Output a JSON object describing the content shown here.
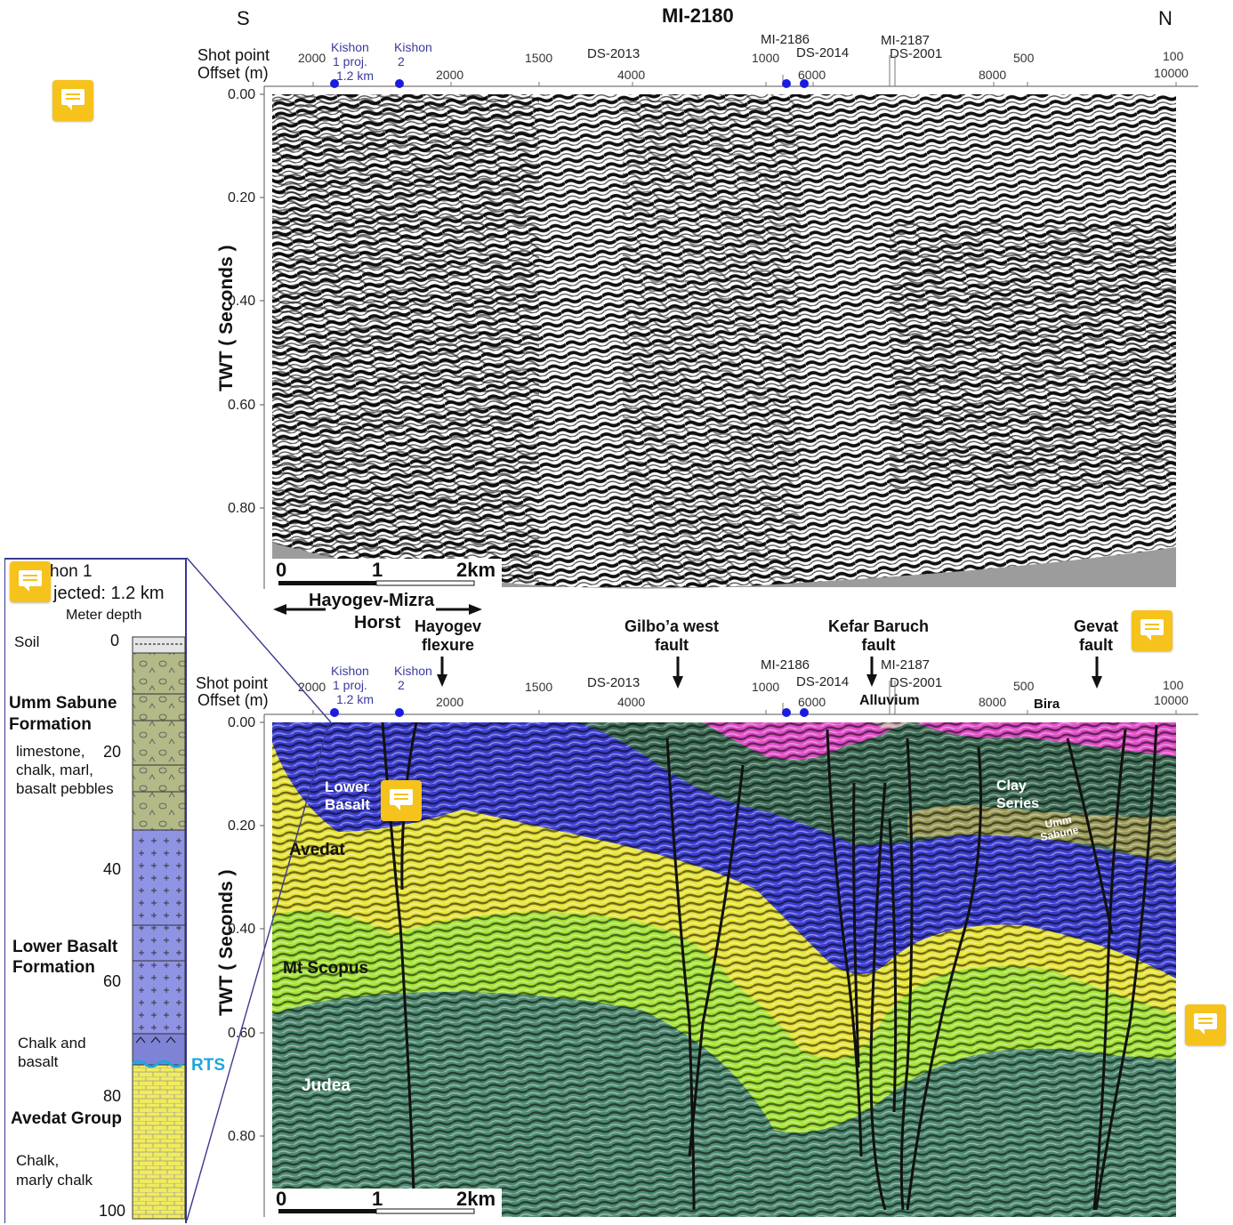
{
  "top_section": {
    "title": "MI-2180",
    "south": "S",
    "north": "N",
    "shot_point_label": "Shot point",
    "offset_label": "Offset (m)",
    "shot_points": [
      {
        "text": "2000"
      },
      {
        "text": "1500"
      },
      {
        "text": "1000"
      },
      {
        "text": "500"
      },
      {
        "text": "100"
      }
    ],
    "offsets": [
      {
        "text": "2000"
      },
      {
        "text": "4000"
      },
      {
        "text": "6000"
      },
      {
        "text": "8000"
      },
      {
        "text": "10000"
      }
    ],
    "wells": [
      {
        "line1": "Kishon",
        "line2": "1 proj.",
        "line3": "1.2 km"
      },
      {
        "line1": "Kishon",
        "line2": "2",
        "line3": ""
      }
    ],
    "crossing_lines": [
      "DS-2013",
      "MI-2186",
      "DS-2014",
      "MI-2187",
      "DS-2001"
    ],
    "y_axis_title": "TWT  ( Seconds )",
    "y_ticks": [
      "0.00",
      "0.20",
      "0.40",
      "0.60",
      "0.80"
    ],
    "scale": {
      "zero": "0",
      "one": "1",
      "two": "2km"
    }
  },
  "horst": {
    "line1": "Hayogev-Mizra",
    "line2": "Horst"
  },
  "faults": [
    {
      "line1": "Hayogev",
      "line2": "flexure"
    },
    {
      "line1": "Gilbo’a west",
      "line2": "fault"
    },
    {
      "line1": "Kefar Baruch",
      "line2": "fault"
    },
    {
      "line1": "Gevat",
      "line2": "fault"
    }
  ],
  "bottom_section": {
    "shot_point_label": "Shot point",
    "offset_label": "Offset (m)",
    "shot_points": [
      {
        "text": "2000"
      },
      {
        "text": "1500"
      },
      {
        "text": "1000"
      },
      {
        "text": "500"
      },
      {
        "text": "100"
      }
    ],
    "offsets": [
      {
        "text": "2000"
      },
      {
        "text": "4000"
      },
      {
        "text": "6000"
      },
      {
        "text": "8000"
      },
      {
        "text": "10000"
      }
    ],
    "wells": [
      {
        "line1": "Kishon",
        "line2": "1 proj.",
        "line3": "1.2 km"
      },
      {
        "line1": "Kishon",
        "line2": "2",
        "line3": ""
      }
    ],
    "crossing_lines": [
      "DS-2013",
      "MI-2186",
      "DS-2014",
      "MI-2187",
      "DS-2001"
    ],
    "y_axis_title": "TWT  ( Seconds )",
    "y_ticks": [
      "0.00",
      "0.20",
      "0.40",
      "0.60",
      "0.80"
    ],
    "scale": {
      "zero": "0",
      "one": "1",
      "two": "2km"
    },
    "units": {
      "alluvium": "Alluvium",
      "bira": "Bira",
      "lower_basalt_1": "Lower",
      "lower_basalt_2": "Basalt",
      "clay_1": "Clay",
      "clay_2": "Series",
      "umm_1": "Umm",
      "umm_2": "Sabune",
      "avedat": "Avedat",
      "mt_scopus": "Mt Scopus",
      "judea": "Judea"
    },
    "colors": {
      "pink": "#e04ec8",
      "darkgreen": "#3f6e57",
      "blue": "#3c3fd0",
      "olive": "#9a9a58",
      "yellow": "#e9e43a",
      "lime": "#a6e43a",
      "teal": "#4e8a70"
    }
  },
  "well_log": {
    "title_1": "hon 1",
    "title_2": "jected: 1.2 km",
    "depth_label": "Meter depth",
    "depth_ticks": [
      "0",
      "20",
      "40",
      "60",
      "80",
      "100"
    ],
    "soil": "Soil",
    "umm_sabune": "Umm Sabune",
    "formation": "Formation",
    "umm_desc_1": "limestone,",
    "umm_desc_2": "chalk, marl,",
    "umm_desc_3": "basalt pebbles",
    "lower_basalt": "Lower Basalt",
    "formation_2": "Formation",
    "chalk_basalt_1": "Chalk and",
    "chalk_basalt_2": "basalt",
    "rts": "RTS",
    "avedat_group": "Avedat Group",
    "avedat_desc_1": "Chalk,",
    "avedat_desc_2": "marly chalk",
    "colors": {
      "umm": "#b3b987",
      "basalt": "#8f93e3",
      "avedat": "#f1ec5b",
      "rts": "#1ba6e0"
    }
  }
}
